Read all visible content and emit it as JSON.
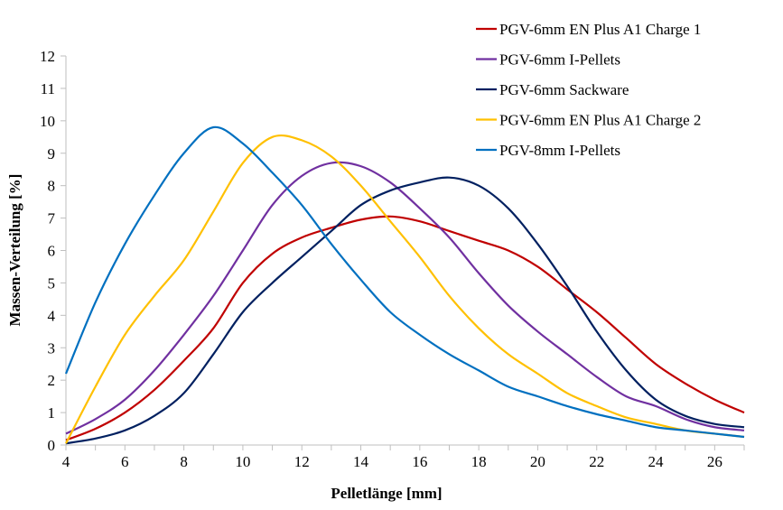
{
  "chart_data": {
    "type": "line",
    "title": "",
    "xlabel": "Pelletlänge [mm]",
    "ylabel": "Massen-Verteilung [%]",
    "xlim": [
      4,
      27
    ],
    "ylim": [
      0,
      12
    ],
    "xticks": [
      4,
      6,
      8,
      10,
      12,
      14,
      16,
      18,
      20,
      22,
      24,
      26
    ],
    "yticks": [
      0,
      1,
      2,
      3,
      4,
      5,
      6,
      7,
      8,
      9,
      10,
      11,
      12
    ],
    "grid": false,
    "legend_position": "top-right",
    "x": [
      4,
      5,
      6,
      7,
      8,
      9,
      10,
      11,
      12,
      13,
      14,
      15,
      16,
      17,
      18,
      19,
      20,
      21,
      22,
      23,
      24,
      25,
      26,
      27
    ],
    "series": [
      {
        "name": "PGV-6mm EN Plus A1 Charge 1",
        "color": "#C00000",
        "values": [
          0.15,
          0.5,
          1.0,
          1.7,
          2.6,
          3.6,
          5.0,
          5.9,
          6.4,
          6.7,
          6.95,
          7.05,
          6.9,
          6.6,
          6.3,
          6.0,
          5.5,
          4.8,
          4.1,
          3.3,
          2.5,
          1.9,
          1.4,
          1.0
        ]
      },
      {
        "name": "PGV-6mm I-Pellets",
        "color": "#7030A0",
        "values": [
          0.35,
          0.8,
          1.4,
          2.3,
          3.4,
          4.6,
          6.0,
          7.4,
          8.3,
          8.7,
          8.6,
          8.1,
          7.3,
          6.4,
          5.3,
          4.3,
          3.5,
          2.8,
          2.1,
          1.5,
          1.2,
          0.8,
          0.55,
          0.45
        ]
      },
      {
        "name": "PGV-6mm Sackware",
        "color": "#002060",
        "values": [
          0.05,
          0.2,
          0.45,
          0.9,
          1.6,
          2.8,
          4.1,
          5.0,
          5.8,
          6.6,
          7.4,
          7.85,
          8.1,
          8.25,
          8.0,
          7.3,
          6.2,
          4.9,
          3.5,
          2.3,
          1.4,
          0.9,
          0.65,
          0.55
        ]
      },
      {
        "name": "PGV-6mm EN Plus A1 Charge 2",
        "color": "#FFC000",
        "values": [
          0.05,
          1.8,
          3.4,
          4.6,
          5.7,
          7.2,
          8.7,
          9.5,
          9.4,
          8.9,
          8.0,
          6.9,
          5.8,
          4.6,
          3.6,
          2.8,
          2.2,
          1.6,
          1.2,
          0.85,
          0.65,
          0.45,
          0.35,
          0.25
        ]
      },
      {
        "name": "PGV-8mm I-Pellets",
        "color": "#0070C0",
        "values": [
          2.2,
          4.4,
          6.2,
          7.7,
          9.0,
          9.8,
          9.3,
          8.4,
          7.4,
          6.2,
          5.1,
          4.1,
          3.4,
          2.8,
          2.3,
          1.8,
          1.5,
          1.2,
          0.95,
          0.75,
          0.55,
          0.45,
          0.35,
          0.25
        ]
      }
    ]
  }
}
